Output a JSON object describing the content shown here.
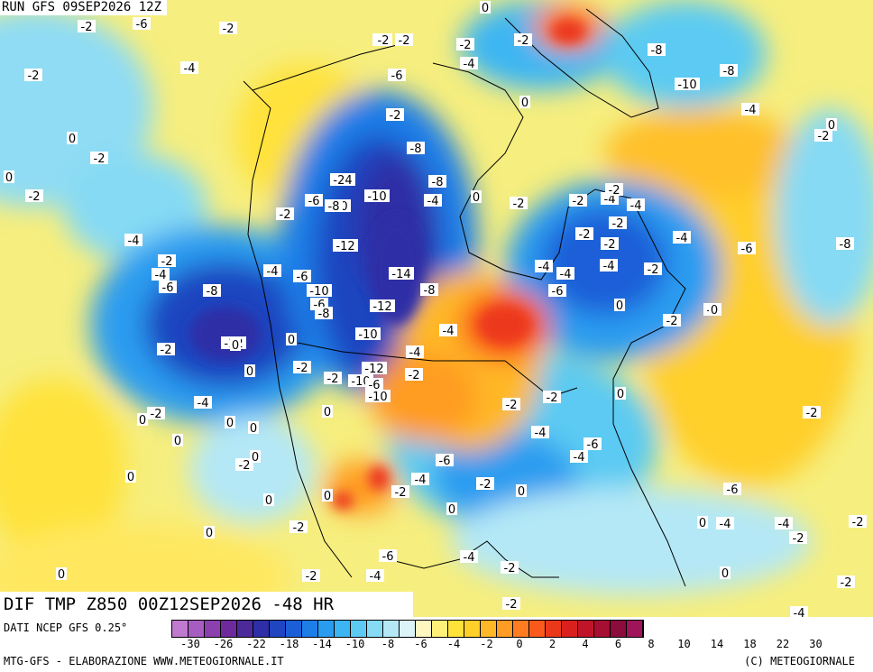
{
  "header": {
    "run_title": "RUN GFS 09SEP2026 12Z"
  },
  "field_title": "DIF TMP Z850 00Z12SEP2026 -48 HR",
  "footer": {
    "data_source": "DATI NCEP GFS 0.25°",
    "producer": "MTG-GFS - ELABORAZIONE WWW.METEOGIORNALE.IT",
    "copyright": "(C) METEOGIORNALE"
  },
  "legend": {
    "colors": [
      "#c07ad0",
      "#a65cc0",
      "#8c3fae",
      "#6e2a9c",
      "#4c2a9a",
      "#2e2fa6",
      "#1f45c0",
      "#1a5fd8",
      "#1e7ee8",
      "#2a9cf0",
      "#3cb6f2",
      "#5ccaf2",
      "#86daf4",
      "#b4e8f6",
      "#dcf4f8",
      "#fff7c0",
      "#fff07a",
      "#ffe23a",
      "#ffcf2a",
      "#ffb828",
      "#ff9c24",
      "#ff7c20",
      "#f95a1c",
      "#ec381a",
      "#d9201c",
      "#c01428",
      "#a60f32",
      "#8c0c3c",
      "#a0145a"
    ],
    "tick_labels": [
      "-30",
      "-26",
      "-22",
      "-18",
      "-14",
      "-10",
      "-8",
      "-6",
      "-4",
      "-2",
      "0",
      "2",
      "4",
      "6",
      "8",
      "10",
      "14",
      "18",
      "22",
      "30"
    ]
  },
  "map_labels": [
    "-2",
    "-6",
    "-2",
    "-4",
    "-2",
    "0",
    "-2",
    "0",
    "-2",
    "-2",
    "-4",
    "-6",
    "-10",
    "-10",
    "-8",
    "-6",
    "-4",
    "-2",
    "-4",
    "-6",
    "-8",
    "0",
    "-2",
    "0",
    "-4",
    "-6",
    "-2",
    "-2",
    "-4",
    "-24",
    "-8",
    "-10",
    "-12",
    "-14",
    "-12",
    "-10",
    "-6",
    "-8",
    "-8",
    "-12",
    "-10",
    "-6",
    "-12",
    "-10",
    "-8",
    "-4",
    "-2",
    "0",
    "-2",
    "-2",
    "-6",
    "-4",
    "-4",
    "-2",
    "-4",
    "-2",
    "-2",
    "-2",
    "-4",
    "-2",
    "0",
    "-6",
    "-4",
    "-2",
    "-2",
    "-10",
    "-8",
    "-8",
    "-6",
    "-8",
    "-4",
    "0",
    "-2",
    "-4",
    "-2",
    "-2",
    "0",
    "-4",
    "-6",
    "-4",
    "-6",
    "-2",
    "-4",
    "0",
    "0",
    "-2",
    "-4",
    "-4",
    "-2",
    "-2",
    "0",
    "0",
    "0",
    "-2",
    "-4",
    "-2",
    "0",
    "0",
    "0",
    "0",
    "-2",
    "0",
    "0",
    "-2",
    "0",
    "0",
    "0",
    "-2",
    "0",
    "0",
    "-2",
    "-4",
    "-6",
    "-4",
    "-2",
    "-2",
    "-6",
    "0",
    "-4",
    "-4",
    "-2",
    "-2",
    "0",
    "-2",
    "-4",
    "-2",
    "-2",
    "0",
    "0",
    "0",
    "0",
    "0"
  ]
}
